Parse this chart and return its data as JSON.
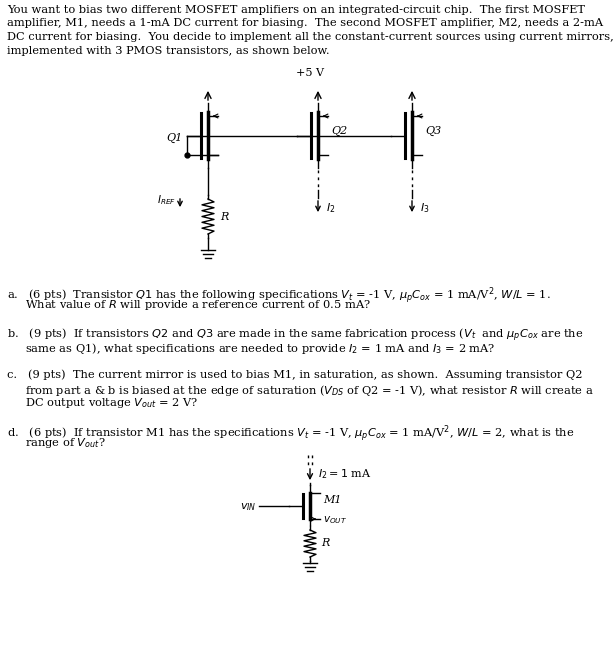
{
  "header": "You want to bias two different MOSFET amplifiers on an integrated-circuit chip.  The first MOSFET amplifier, M1, needs a 1-mA DC current for biasing.  The second MOSFET amplifier, M2, needs a 2-mA DC current for biasing.  You decide to implement all the constant-current sources using current mirrors, implemented with 3 PMOS transistors, as shown below.",
  "vdd_label": "+5 V",
  "q1_label": "Q1",
  "q2_label": "Q2",
  "q3_label": "Q3",
  "iref_label": "I_REF",
  "r_label": "R",
  "i2_label": "I_2",
  "i3_label": "I_3",
  "qa": "a. (6 pts)  Transistor Q1 has the following specifications Vt = -1 V, μpCox = 1 mA/V², W/L = 1.\n  What value of R will provide a reference current of 0.5 mA?",
  "qb": "b. (9 pts)  If transistors Q2 and Q3 are made in the same fabrication process (Vt  and μpCox are the\n  same as Q1), what specifications are needed to provide I2 = 1 mA and I3 = 2 mA?",
  "qc": "c. (9 pts)  The current mirror is used to bias M1, in saturation, as shown.  Assuming transistor Q2\n  from part a & b is biased at the edge of saturation (VDS of Q2 = -1 V), what resistor R will create a\n  DC output voltage Vout = 2 V?",
  "qd": "d. (6 pts)  If transistor M1 has the specifications Vt = -1 V, μpCox = 1 mA/V², W/L = 2, what is the\n  range of Vout?",
  "i2_bot_label": "I_2 = 1 mA",
  "vin_label": "v_IN",
  "m1_label": "M1",
  "vout_label": "v_OUT",
  "r2_label": "R",
  "bg_color": "#ffffff"
}
